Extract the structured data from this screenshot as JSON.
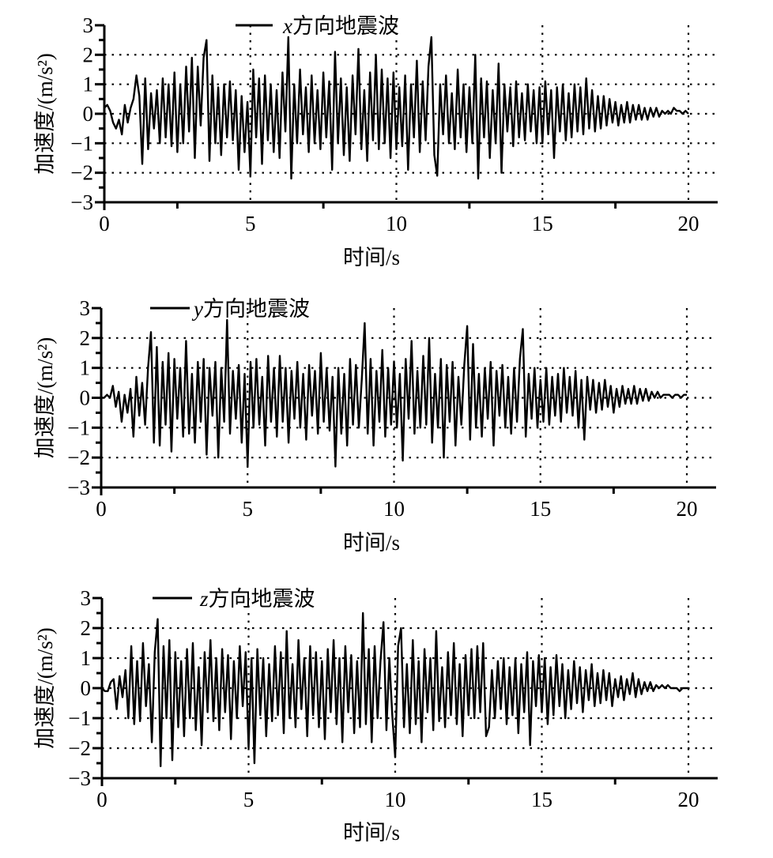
{
  "chart_data": [
    {
      "type": "line",
      "title": "",
      "legend": "x方向地震波",
      "legend_italic_prefix": "x",
      "legend_position": "top-center",
      "xlabel": "时间/s",
      "ylabel": "加速度/(m/s²)",
      "xlim": [
        0,
        21
      ],
      "ylim": [
        -3,
        3
      ],
      "xticks": [
        "0",
        "5",
        "10",
        "15",
        "20"
      ],
      "yticks": [
        "−3",
        "−2",
        "−1",
        "0",
        "1",
        "2",
        "3"
      ],
      "grid": true,
      "t_start": 0,
      "dt": 0.1,
      "values": [
        0.2,
        0.3,
        0.1,
        -0.3,
        -0.5,
        -0.2,
        -0.7,
        0.3,
        -0.3,
        0.2,
        0.5,
        1.3,
        0.6,
        -1.7,
        1.2,
        -1.2,
        0.7,
        -0.5,
        0.8,
        -1.0,
        1.2,
        -0.8,
        1.0,
        -1.1,
        1.4,
        -1.3,
        1.0,
        -1.0,
        1.6,
        -0.6,
        1.9,
        -1.5,
        1.6,
        -0.4,
        1.9,
        2.5,
        -1.6,
        1.3,
        -1.0,
        0.9,
        -1.4,
        1.0,
        -0.8,
        1.1,
        -0.9,
        0.8,
        -1.9,
        0.6,
        -1.3,
        0.4,
        -2.1,
        1.5,
        -0.8,
        1.2,
        -1.7,
        1.3,
        -0.9,
        1.0,
        -1.3,
        0.8,
        -1.5,
        1.4,
        -0.6,
        2.6,
        -2.2,
        1.0,
        -1.0,
        1.5,
        -0.7,
        0.9,
        -1.3,
        1.3,
        -1.0,
        0.8,
        -1.2,
        1.4,
        -0.8,
        1.1,
        -1.9,
        2.1,
        -1.0,
        1.2,
        -1.4,
        0.9,
        -1.6,
        1.3,
        -0.7,
        2.2,
        -1.2,
        0.8,
        -1.6,
        1.4,
        -0.9,
        2.0,
        -1.2,
        1.5,
        -1.0,
        1.2,
        -1.5,
        1.4,
        -1.2,
        0.9,
        -1.1,
        1.3,
        -1.9,
        1.0,
        -0.8,
        1.8,
        -1.3,
        1.1,
        -0.9,
        1.6,
        2.6,
        -1.4,
        -2.1,
        1.0,
        -0.7,
        1.3,
        -1.0,
        0.7,
        -1.2,
        1.5,
        -0.8,
        1.0,
        -1.3,
        0.9,
        -1.0,
        2.0,
        -2.2,
        1.2,
        -0.8,
        1.1,
        -1.5,
        0.8,
        -1.0,
        1.7,
        -2.0,
        1.0,
        -0.6,
        0.9,
        -1.1,
        1.1,
        -0.8,
        0.7,
        -0.9,
        1.0,
        -0.6,
        0.8,
        -1.0,
        0.9,
        -1.0,
        1.1,
        -0.7,
        0.8,
        -1.5,
        0.9,
        -0.6,
        1.0,
        -0.9,
        0.7,
        -0.8,
        1.0,
        -0.6,
        0.9,
        -0.7,
        1.2,
        -0.5,
        0.8,
        -0.6,
        0.6,
        -0.5,
        0.6,
        -0.4,
        0.5,
        -0.3,
        0.4,
        -0.4,
        0.3,
        -0.3,
        0.4,
        -0.3,
        0.3,
        -0.2,
        0.3,
        -0.2,
        0.2,
        -0.2,
        0.2,
        -0.1,
        0.2,
        -0.1,
        0.1,
        0.0,
        0.1,
        0.0,
        0.2,
        0.1,
        0.1,
        0.0,
        0.1,
        0.0
      ]
    },
    {
      "type": "line",
      "title": "",
      "legend": "y方向地震波",
      "legend_italic_prefix": "y",
      "legend_position": "top-left",
      "xlabel": "时间/s",
      "ylabel": "加速度/(m/s²)",
      "xlim": [
        0,
        21
      ],
      "ylim": [
        -3,
        3
      ],
      "xticks": [
        "0",
        "5",
        "10",
        "15",
        "20"
      ],
      "yticks": [
        "−3",
        "−2",
        "−1",
        "0",
        "1",
        "2",
        "3"
      ],
      "grid": true,
      "t_start": 0,
      "dt": 0.1,
      "values": [
        0.0,
        0.0,
        0.1,
        0.0,
        0.4,
        -0.3,
        0.2,
        -0.8,
        0.1,
        -0.5,
        0.3,
        -1.3,
        0.7,
        -0.6,
        0.5,
        -0.9,
        1.0,
        2.2,
        -1.5,
        1.7,
        -1.6,
        1.2,
        -0.9,
        1.5,
        -1.8,
        1.3,
        -0.7,
        1.0,
        -1.3,
        1.9,
        -1.2,
        0.8,
        -1.5,
        1.2,
        -0.8,
        1.3,
        -1.9,
        1.0,
        -0.6,
        1.2,
        -2.0,
        1.0,
        -0.8,
        2.6,
        -1.2,
        0.9,
        -0.7,
        1.1,
        -1.5,
        0.8,
        -2.3,
        1.2,
        -1.0,
        1.3,
        -0.9,
        0.7,
        -1.6,
        1.4,
        -0.8,
        1.0,
        -1.3,
        1.4,
        -0.8,
        1.0,
        -1.5,
        0.9,
        -0.7,
        1.2,
        -1.0,
        0.8,
        -1.4,
        1.1,
        -0.6,
        0.9,
        -1.2,
        1.5,
        -0.8,
        1.0,
        -1.1,
        0.7,
        -2.3,
        1.0,
        -1.2,
        0.8,
        -1.6,
        1.3,
        -0.9,
        1.1,
        -1.0,
        0.6,
        2.5,
        -1.2,
        1.3,
        -1.6,
        0.9,
        -0.8,
        1.6,
        -1.3,
        1.0,
        -0.9,
        1.2,
        -1.0,
        0.8,
        -2.1,
        1.3,
        -0.7,
        1.9,
        -1.2,
        0.9,
        -1.0,
        1.4,
        -0.9,
        2.0,
        -1.5,
        0.8,
        -1.0,
        1.3,
        -2.0,
        1.1,
        -0.8,
        1.2,
        -1.6,
        0.7,
        -0.9,
        1.1,
        2.4,
        -1.4,
        1.8,
        -1.0,
        0.8,
        -1.3,
        1.0,
        -0.7,
        1.2,
        -1.6,
        0.9,
        -0.6,
        1.1,
        -1.0,
        0.7,
        -1.2,
        1.0,
        -0.8,
        1.3,
        2.3,
        -1.3,
        0.8,
        -0.7,
        1.0,
        -1.0,
        0.6,
        -0.8,
        1.0,
        -0.9,
        0.7,
        -0.6,
        0.8,
        -0.8,
        1.0,
        -0.5,
        0.7,
        -0.6,
        0.9,
        -1.0,
        0.6,
        -1.4,
        0.7,
        -0.4,
        0.6,
        -0.5,
        0.5,
        -0.4,
        0.6,
        -0.3,
        0.4,
        -0.5,
        0.3,
        -0.3,
        0.4,
        -0.2,
        0.3,
        -0.2,
        0.4,
        -0.2,
        0.3,
        -0.1,
        0.3,
        -0.1,
        0.2,
        0.0,
        0.2,
        0.0,
        0.1,
        0.1,
        0.1,
        0.0,
        0.1,
        0.1,
        0.0,
        0.1,
        0.1
      ]
    },
    {
      "type": "line",
      "title": "",
      "legend": "z方向地震波",
      "legend_italic_prefix": "z",
      "legend_position": "top-left",
      "xlabel": "时间/s",
      "ylabel": "加速度/(m/s²)",
      "xlim": [
        0,
        21
      ],
      "ylim": [
        -3,
        3
      ],
      "xticks": [
        "0",
        "5",
        "10",
        "15",
        "20"
      ],
      "yticks": [
        "−3",
        "−2",
        "−1",
        "0",
        "1",
        "2",
        "3"
      ],
      "grid": true,
      "t_start": 0,
      "dt": 0.1,
      "values": [
        0.0,
        -0.1,
        -0.1,
        0.2,
        0.3,
        -0.7,
        0.4,
        -0.3,
        0.6,
        -1.0,
        1.4,
        -1.2,
        0.9,
        -1.1,
        1.5,
        -0.6,
        0.8,
        -1.8,
        1.2,
        2.3,
        -2.6,
        1.4,
        -1.0,
        1.6,
        -2.4,
        1.2,
        -1.3,
        0.9,
        -1.6,
        1.3,
        -1.0,
        1.5,
        -1.4,
        0.7,
        -1.9,
        1.2,
        -0.8,
        1.6,
        -1.1,
        1.0,
        -1.4,
        1.3,
        -0.8,
        1.1,
        -1.7,
        0.9,
        -1.0,
        1.4,
        -0.6,
        1.2,
        -2.0,
        1.0,
        -2.5,
        1.3,
        -0.9,
        1.0,
        -1.6,
        0.8,
        -1.1,
        1.4,
        -0.9,
        1.2,
        -1.5,
        1.9,
        -1.0,
        0.8,
        -1.3,
        1.6,
        -0.7,
        1.0,
        -1.6,
        1.4,
        -0.9,
        1.2,
        -1.3,
        0.9,
        -1.7,
        1.3,
        -0.8,
        1.6,
        -1.2,
        1.0,
        -1.8,
        1.4,
        -0.8,
        1.1,
        -1.5,
        0.9,
        -1.3,
        2.5,
        -1.2,
        1.3,
        -1.8,
        1.4,
        -1.0,
        0.9,
        2.2,
        -1.4,
        1.0,
        -0.9,
        -2.3,
        1.4,
        2.0,
        -1.3,
        0.8,
        -1.5,
        1.6,
        -1.2,
        0.9,
        -1.8,
        1.3,
        -0.8,
        1.0,
        -1.4,
        1.9,
        -1.1,
        0.7,
        -1.3,
        1.2,
        -0.9,
        1.5,
        -1.2,
        0.8,
        -1.6,
        1.1,
        -0.9,
        1.3,
        -1.0,
        1.4,
        -0.8,
        1.5,
        -1.6,
        -1.3,
        0.6,
        -1.0,
        0.9,
        -0.7,
        1.0,
        -1.2,
        0.7,
        -0.9,
        1.0,
        -1.5,
        0.8,
        -0.8,
        1.2,
        -1.9,
        0.9,
        -0.6,
        1.1,
        -0.8,
        1.0,
        -1.2,
        0.7,
        -0.9,
        1.1,
        -0.6,
        0.8,
        -1.0,
        0.6,
        -0.7,
        0.9,
        -0.5,
        0.7,
        -0.8,
        0.6,
        -0.4,
        0.8,
        -0.6,
        0.5,
        -0.5,
        0.6,
        -0.4,
        0.5,
        -0.6,
        0.3,
        -0.3,
        0.4,
        -0.4,
        0.3,
        -0.2,
        0.5,
        -0.3,
        0.3,
        -0.2,
        0.2,
        -0.1,
        0.2,
        -0.1,
        0.1,
        0.0,
        0.1,
        0.0,
        0.1,
        0.0,
        0.0,
        0.0,
        -0.1,
        0.0,
        0.0,
        0.0
      ]
    }
  ]
}
